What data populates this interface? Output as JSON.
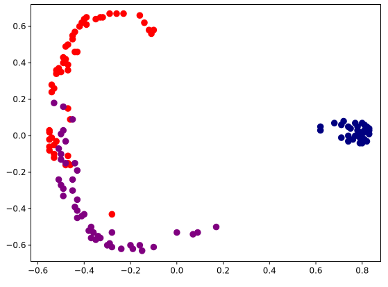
{
  "chart_data": {
    "type": "scatter",
    "title": "",
    "xlabel": "",
    "ylabel": "",
    "xlim": [
      -0.63,
      0.88
    ],
    "ylim": [
      -0.69,
      0.72
    ],
    "grid": false,
    "x_ticks": [
      -0.6,
      -0.4,
      -0.2,
      0.0,
      0.2,
      0.4,
      0.6,
      0.8
    ],
    "x_tick_labels": [
      "−0.6",
      "−0.4",
      "−0.2",
      "0.0",
      "0.2",
      "0.4",
      "0.6",
      "0.8"
    ],
    "y_ticks": [
      -0.6,
      -0.4,
      -0.2,
      0.0,
      0.2,
      0.4,
      0.6
    ],
    "y_tick_labels": [
      "−0.6",
      "−0.4",
      "−0.2",
      "0.0",
      "0.2",
      "0.4",
      "0.6"
    ],
    "series": [
      {
        "color": "#ff0000",
        "points": [
          [
            -0.26,
            0.67
          ],
          [
            -0.29,
            0.67
          ],
          [
            -0.23,
            0.67
          ],
          [
            -0.16,
            0.66
          ],
          [
            -0.32,
            0.65
          ],
          [
            -0.39,
            0.65
          ],
          [
            -0.4,
            0.64
          ],
          [
            -0.35,
            0.64
          ],
          [
            -0.33,
            0.65
          ],
          [
            -0.41,
            0.62
          ],
          [
            -0.39,
            0.61
          ],
          [
            -0.42,
            0.6
          ],
          [
            -0.14,
            0.62
          ],
          [
            -0.12,
            0.58
          ],
          [
            -0.1,
            0.58
          ],
          [
            -0.11,
            0.56
          ],
          [
            -0.44,
            0.57
          ],
          [
            -0.45,
            0.55
          ],
          [
            -0.45,
            0.53
          ],
          [
            -0.47,
            0.5
          ],
          [
            -0.48,
            0.49
          ],
          [
            -0.44,
            0.46
          ],
          [
            -0.43,
            0.46
          ],
          [
            -0.49,
            0.43
          ],
          [
            -0.48,
            0.42
          ],
          [
            -0.49,
            0.4
          ],
          [
            -0.47,
            0.39
          ],
          [
            -0.51,
            0.37
          ],
          [
            -0.5,
            0.35
          ],
          [
            -0.52,
            0.36
          ],
          [
            -0.52,
            0.34
          ],
          [
            -0.47,
            0.36
          ],
          [
            -0.54,
            0.28
          ],
          [
            -0.53,
            0.26
          ],
          [
            -0.54,
            0.24
          ],
          [
            -0.47,
            0.15
          ],
          [
            -0.46,
            0.09
          ],
          [
            -0.55,
            0.03
          ],
          [
            -0.55,
            0.02
          ],
          [
            -0.54,
            -0.01
          ],
          [
            -0.55,
            -0.02
          ],
          [
            -0.52,
            -0.03
          ],
          [
            -0.53,
            -0.05
          ],
          [
            -0.55,
            -0.06
          ],
          [
            -0.55,
            -0.08
          ],
          [
            -0.53,
            -0.1
          ],
          [
            -0.53,
            -0.12
          ],
          [
            -0.47,
            -0.11
          ],
          [
            -0.47,
            -0.15
          ],
          [
            -0.46,
            -0.16
          ],
          [
            -0.48,
            -0.16
          ],
          [
            -0.28,
            -0.43
          ]
        ]
      },
      {
        "color": "#800080",
        "points": [
          [
            -0.53,
            0.18
          ],
          [
            -0.49,
            0.16
          ],
          [
            -0.45,
            0.09
          ],
          [
            -0.49,
            0.03
          ],
          [
            -0.5,
            0.01
          ],
          [
            -0.48,
            -0.03
          ],
          [
            -0.51,
            -0.07
          ],
          [
            -0.5,
            -0.1
          ],
          [
            -0.5,
            -0.13
          ],
          [
            -0.48,
            -0.15
          ],
          [
            -0.44,
            -0.15
          ],
          [
            -0.43,
            -0.19
          ],
          [
            -0.45,
            -0.24
          ],
          [
            -0.51,
            -0.24
          ],
          [
            -0.5,
            -0.27
          ],
          [
            -0.49,
            -0.29
          ],
          [
            -0.45,
            -0.3
          ],
          [
            -0.49,
            -0.33
          ],
          [
            -0.43,
            -0.35
          ],
          [
            -0.44,
            -0.39
          ],
          [
            -0.43,
            -0.41
          ],
          [
            -0.4,
            -0.43
          ],
          [
            -0.41,
            -0.44
          ],
          [
            -0.43,
            -0.45
          ],
          [
            -0.37,
            -0.5
          ],
          [
            -0.38,
            -0.52
          ],
          [
            -0.36,
            -0.53
          ],
          [
            -0.37,
            -0.56
          ],
          [
            -0.34,
            -0.55
          ],
          [
            -0.33,
            -0.56
          ],
          [
            -0.35,
            -0.57
          ],
          [
            -0.28,
            -0.53
          ],
          [
            -0.29,
            -0.59
          ],
          [
            -0.3,
            -0.6
          ],
          [
            -0.28,
            -0.61
          ],
          [
            -0.24,
            -0.62
          ],
          [
            -0.2,
            -0.6
          ],
          [
            -0.19,
            -0.62
          ],
          [
            -0.16,
            -0.6
          ],
          [
            -0.15,
            -0.63
          ],
          [
            -0.1,
            -0.61
          ],
          [
            0.0,
            -0.53
          ],
          [
            0.07,
            -0.54
          ],
          [
            0.09,
            -0.53
          ],
          [
            0.17,
            -0.5
          ]
        ]
      },
      {
        "color": "#000080",
        "points": [
          [
            0.62,
            0.05
          ],
          [
            0.62,
            0.03
          ],
          [
            0.68,
            0.07
          ],
          [
            0.71,
            0.06
          ],
          [
            0.72,
            0.08
          ],
          [
            0.74,
            0.05
          ],
          [
            0.75,
            0.04
          ],
          [
            0.77,
            0.07
          ],
          [
            0.78,
            0.05
          ],
          [
            0.8,
            0.07
          ],
          [
            0.82,
            0.05
          ],
          [
            0.83,
            0.04
          ],
          [
            0.81,
            0.03
          ],
          [
            0.79,
            0.02
          ],
          [
            0.82,
            0.02
          ],
          [
            0.83,
            0.01
          ],
          [
            0.8,
            0.01
          ],
          [
            0.77,
            0.0
          ],
          [
            0.74,
            0.0
          ],
          [
            0.71,
            -0.01
          ],
          [
            0.79,
            -0.01
          ],
          [
            0.81,
            -0.02
          ],
          [
            0.82,
            -0.03
          ],
          [
            0.79,
            -0.04
          ],
          [
            0.8,
            -0.04
          ],
          [
            0.76,
            -0.02
          ],
          [
            0.74,
            -0.03
          ],
          [
            0.83,
            0.03
          ],
          [
            0.78,
            0.03
          ],
          [
            0.81,
            0.06
          ]
        ]
      }
    ]
  }
}
